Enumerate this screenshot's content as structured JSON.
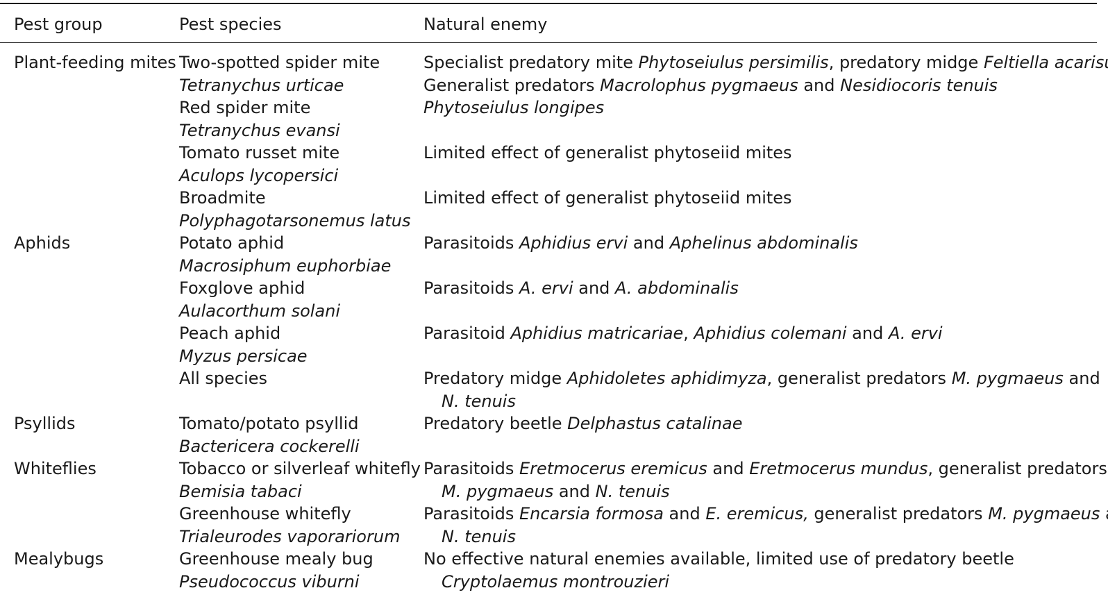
{
  "headers": {
    "pest_group": "Pest group",
    "pest_species": "Pest species",
    "natural_enemy": "Natural enemy"
  },
  "lines": [
    {
      "group": "Plant-feeding mites",
      "species": "Two-spotted spider mite",
      "species_italic": false,
      "enemy": [
        {
          "t": "Specialist predatory mite ",
          "i": false
        },
        {
          "t": "Phytoseiulus persimilis",
          "i": true
        },
        {
          "t": ", predatory midge ",
          "i": false
        },
        {
          "t": "Feltiella acarisuga",
          "i": true
        }
      ],
      "enemy_indent": false
    },
    {
      "group": "",
      "species": "Tetranychus urticae",
      "species_italic": true,
      "enemy": [
        {
          "t": "Generalist predators ",
          "i": false
        },
        {
          "t": "Macrolophus pygmaeus",
          "i": true
        },
        {
          "t": " and ",
          "i": false
        },
        {
          "t": "Nesidiocoris tenuis",
          "i": true
        }
      ],
      "enemy_indent": false
    },
    {
      "group": "",
      "species": "Red spider mite",
      "species_italic": false,
      "enemy": [
        {
          "t": "Phytoseiulus longipes",
          "i": true
        }
      ],
      "enemy_indent": false
    },
    {
      "group": "",
      "species": "Tetranychus evansi",
      "species_italic": true,
      "enemy": [],
      "enemy_indent": false
    },
    {
      "group": "",
      "species": "Tomato russet mite",
      "species_italic": false,
      "enemy": [
        {
          "t": "Limited effect of generalist phytoseiid mites",
          "i": false
        }
      ],
      "enemy_indent": false
    },
    {
      "group": "",
      "species": "Aculops lycopersici",
      "species_italic": true,
      "enemy": [],
      "enemy_indent": false
    },
    {
      "group": "",
      "species": "Broadmite",
      "species_italic": false,
      "enemy": [
        {
          "t": "Limited effect of generalist phytoseiid mites",
          "i": false
        }
      ],
      "enemy_indent": false
    },
    {
      "group": "",
      "species": "Polyphagotarsonemus latus",
      "species_italic": true,
      "enemy": [],
      "enemy_indent": false
    },
    {
      "group": "Aphids",
      "species": "Potato aphid",
      "species_italic": false,
      "enemy": [
        {
          "t": "Parasitoids ",
          "i": false
        },
        {
          "t": "Aphidius ervi",
          "i": true
        },
        {
          "t": " and ",
          "i": false
        },
        {
          "t": "Aphelinus abdominalis",
          "i": true
        }
      ],
      "enemy_indent": false
    },
    {
      "group": "",
      "species": "Macrosiphum euphorbiae",
      "species_italic": true,
      "enemy": [],
      "enemy_indent": false
    },
    {
      "group": "",
      "species": "Foxglove aphid",
      "species_italic": false,
      "enemy": [
        {
          "t": "Parasitoids ",
          "i": false
        },
        {
          "t": "A. ervi",
          "i": true
        },
        {
          "t": " and ",
          "i": false
        },
        {
          "t": "A. abdominalis",
          "i": true
        }
      ],
      "enemy_indent": false
    },
    {
      "group": "",
      "species": "Aulacorthum solani",
      "species_italic": true,
      "enemy": [],
      "enemy_indent": false
    },
    {
      "group": "",
      "species": "Peach aphid",
      "species_italic": false,
      "enemy": [
        {
          "t": "Parasitoid ",
          "i": false
        },
        {
          "t": "Aphidius matricariae",
          "i": true
        },
        {
          "t": ", ",
          "i": false
        },
        {
          "t": "Aphidius colemani",
          "i": true
        },
        {
          "t": " and ",
          "i": false
        },
        {
          "t": "A. ervi",
          "i": true
        }
      ],
      "enemy_indent": false
    },
    {
      "group": "",
      "species": "Myzus persicae",
      "species_italic": true,
      "enemy": [],
      "enemy_indent": false
    },
    {
      "group": "",
      "species": "All species",
      "species_italic": false,
      "enemy": [
        {
          "t": "Predatory midge ",
          "i": false
        },
        {
          "t": "Aphidoletes aphidimyza",
          "i": true
        },
        {
          "t": ", generalist predators ",
          "i": false
        },
        {
          "t": "M. pygmaeus",
          "i": true
        },
        {
          "t": " and",
          "i": false
        }
      ],
      "enemy_indent": false
    },
    {
      "group": "",
      "species": "",
      "species_italic": false,
      "enemy": [
        {
          "t": "N. tenuis",
          "i": true
        }
      ],
      "enemy_indent": true
    },
    {
      "group": "Psyllids",
      "species": "Tomato/potato psyllid",
      "species_italic": false,
      "enemy": [
        {
          "t": "Predatory beetle ",
          "i": false
        },
        {
          "t": "Delphastus catalinae",
          "i": true
        }
      ],
      "enemy_indent": false
    },
    {
      "group": "",
      "species": "Bactericera cockerelli",
      "species_italic": true,
      "enemy": [],
      "enemy_indent": false
    },
    {
      "group": "Whiteflies",
      "species": "Tobacco or silverleaf whitefly",
      "species_italic": false,
      "enemy": [
        {
          "t": "Parasitoids ",
          "i": false
        },
        {
          "t": "Eretmocerus eremicus",
          "i": true
        },
        {
          "t": " and ",
          "i": false
        },
        {
          "t": "Eretmocerus mundus",
          "i": true
        },
        {
          "t": ", generalist predators",
          "i": false
        }
      ],
      "enemy_indent": false
    },
    {
      "group": "",
      "species": "Bemisia tabaci",
      "species_italic": true,
      "enemy": [
        {
          "t": "M. pygmaeus",
          "i": true
        },
        {
          "t": " and ",
          "i": false
        },
        {
          "t": "N. tenuis",
          "i": true
        }
      ],
      "enemy_indent": true
    },
    {
      "group": "",
      "species": "Greenhouse whitefly",
      "species_italic": false,
      "enemy": [
        {
          "t": "Parasitoids ",
          "i": false
        },
        {
          "t": "Encarsia formosa",
          "i": true
        },
        {
          "t": " and ",
          "i": false
        },
        {
          "t": "E. eremicus,",
          "i": true
        },
        {
          "t": " generalist predators ",
          "i": false
        },
        {
          "t": "M. pygmaeus",
          "i": true
        },
        {
          "t": " and",
          "i": false
        }
      ],
      "enemy_indent": false
    },
    {
      "group": "",
      "species": "Trialeurodes vaporariorum",
      "species_italic": true,
      "enemy": [
        {
          "t": "N. tenuis",
          "i": true
        }
      ],
      "enemy_indent": true
    },
    {
      "group": "Mealybugs",
      "species": "Greenhouse mealy bug",
      "species_italic": false,
      "enemy": [
        {
          "t": "No effective natural enemies available, limited use of predatory beetle",
          "i": false
        }
      ],
      "enemy_indent": false
    },
    {
      "group": "",
      "species": "Pseudococcus viburni",
      "species_italic": true,
      "enemy": [
        {
          "t": "Cryptolaemus montrouzieri",
          "i": true
        }
      ],
      "enemy_indent": true
    }
  ]
}
